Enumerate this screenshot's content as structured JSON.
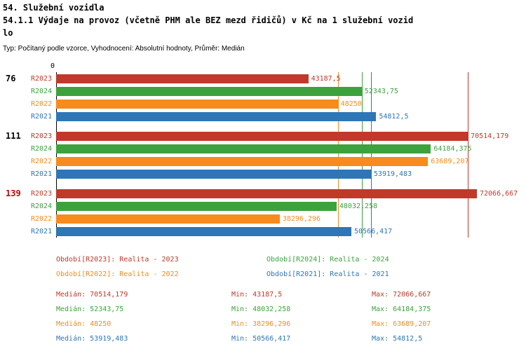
{
  "header": {
    "title_line1": "54. Služební vozidla",
    "title_line2": "54.1.1 Výdaje na provoz (včetně PHM ale BEZ mezd řidičů) v Kč na 1 služební vozid",
    "title_line3": "lo",
    "meta": "Typ: Počítaný podle vzorce, Vyhodnocení: Absolutní hodnoty, Průměr: Medián"
  },
  "colors": {
    "R2023": "#c0392b",
    "R2024": "#3da23d",
    "R2022": "#f68b1e",
    "R2021": "#2e76b5",
    "highlight_group_label": "#cc0000",
    "axis": "#000000"
  },
  "chart_data": {
    "type": "bar",
    "orientation": "horizontal",
    "xlim": [
      0,
      72066.667
    ],
    "axis_zero_label": "0",
    "unit": "Kč na 1 služební vozidlo",
    "average_type": "Medián",
    "series_order": [
      "R2023",
      "R2024",
      "R2022",
      "R2021"
    ],
    "groups": [
      {
        "label": "76",
        "label_color": "#000000",
        "bars": [
          {
            "series": "R2023",
            "value": 43187.5,
            "value_label": "43187,5"
          },
          {
            "series": "R2024",
            "value": 52343.75,
            "value_label": "52343,75"
          },
          {
            "series": "R2022",
            "value": 48250,
            "value_label": "48250"
          },
          {
            "series": "R2021",
            "value": 54812.5,
            "value_label": "54812,5"
          }
        ]
      },
      {
        "label": "111",
        "label_color": "#000000",
        "bars": [
          {
            "series": "R2023",
            "value": 70514.179,
            "value_label": "70514,179"
          },
          {
            "series": "R2024",
            "value": 64184.375,
            "value_label": "64184,375"
          },
          {
            "series": "R2022",
            "value": 63689.207,
            "value_label": "63689,207"
          },
          {
            "series": "R2021",
            "value": 53919.483,
            "value_label": "53919,483"
          }
        ]
      },
      {
        "label": "139",
        "label_color": "#cc0000",
        "bars": [
          {
            "series": "R2023",
            "value": 72066.667,
            "value_label": "72066,667"
          },
          {
            "series": "R2024",
            "value": 48032.258,
            "value_label": "48032,258"
          },
          {
            "series": "R2022",
            "value": 38296.296,
            "value_label": "38296,296"
          },
          {
            "series": "R2021",
            "value": 50566.417,
            "value_label": "50566,417"
          }
        ]
      }
    ],
    "median_lines": [
      {
        "series": "R2023",
        "value": 70514.179
      },
      {
        "series": "R2024",
        "value": 52343.75
      },
      {
        "series": "R2022",
        "value": 48250
      },
      {
        "series": "R2021",
        "value": 53919.483
      }
    ]
  },
  "legend": [
    {
      "series": "R2023",
      "text": "Období[R2023]: Realita - 2023"
    },
    {
      "series": "R2024",
      "text": "Období[R2024]: Realita - 2024"
    },
    {
      "series": "R2022",
      "text": "Období[R2022]: Realita - 2022"
    },
    {
      "series": "R2021",
      "text": "Období[R2021]: Realita - 2021"
    }
  ],
  "stats": [
    {
      "series": "R2023",
      "median": "Medián: 70514,179",
      "min": "Min: 43187,5",
      "max": "Max: 72066,667"
    },
    {
      "series": "R2024",
      "median": "Medián: 52343,75",
      "min": "Min: 48032,258",
      "max": "Max: 64184,375"
    },
    {
      "series": "R2022",
      "median": "Medián: 48250",
      "min": "Min: 38296,296",
      "max": "Max: 63689,207"
    },
    {
      "series": "R2021",
      "median": "Medián: 53919,483",
      "min": "Min: 50566,417",
      "max": "Max: 54812,5"
    }
  ]
}
